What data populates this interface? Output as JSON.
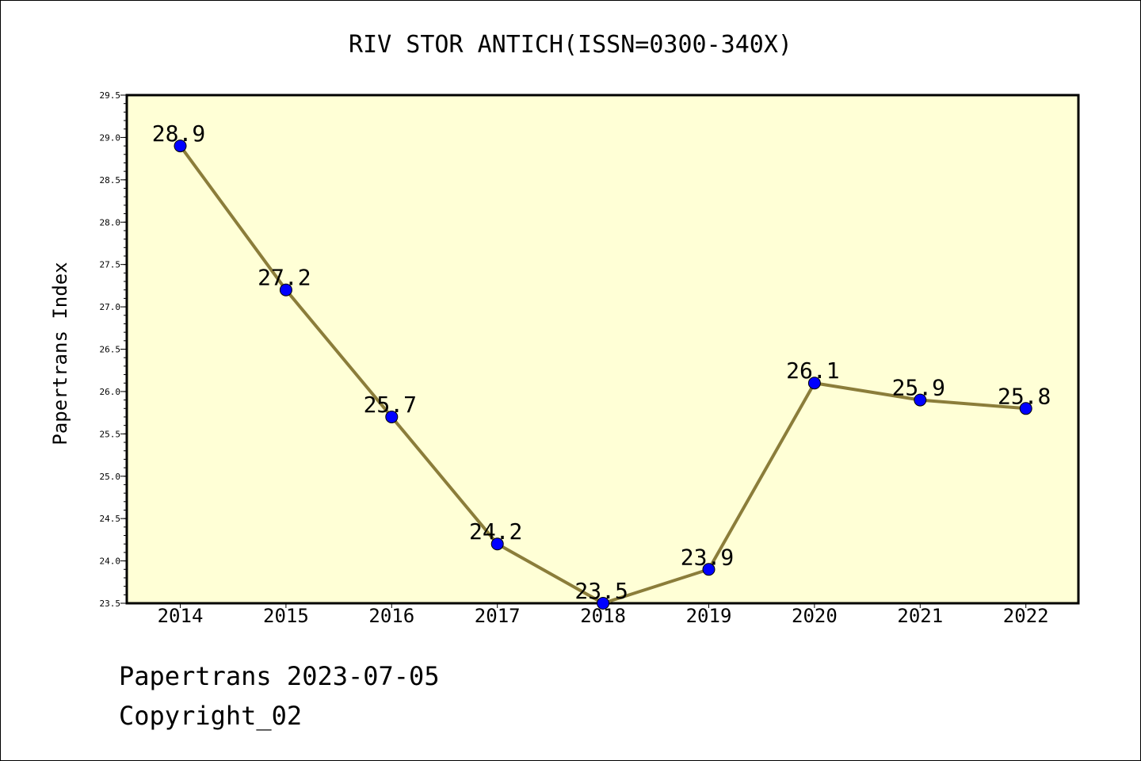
{
  "chart_data": {
    "type": "line",
    "title": "RIV STOR ANTICH(ISSN=0300-340X)",
    "xlabel": "",
    "ylabel": "Papertrans Index",
    "categories": [
      "2014",
      "2015",
      "2016",
      "2017",
      "2018",
      "2019",
      "2020",
      "2021",
      "2022"
    ],
    "values": [
      28.9,
      27.2,
      25.7,
      24.2,
      23.5,
      23.9,
      26.1,
      25.9,
      25.8
    ],
    "data_labels": [
      "28.9",
      "27.2",
      "25.7",
      "24.2",
      "23.5",
      "23.9",
      "26.1",
      "25.9",
      "25.8"
    ],
    "ylim": [
      23.5,
      29.5
    ],
    "yticks": [
      "23.5",
      "24.0",
      "24.5",
      "25.0",
      "25.5",
      "26.0",
      "26.5",
      "27.0",
      "27.5",
      "28.0",
      "28.5",
      "29.0",
      "29.5"
    ],
    "grid": false,
    "legend": "none",
    "colors": {
      "plot_background": "#ffffd6",
      "line": "#8b7d3a",
      "marker": "#0000ff"
    }
  },
  "footer": {
    "line1": "Papertrans 2023-07-05",
    "line2": "Copyright_02"
  }
}
